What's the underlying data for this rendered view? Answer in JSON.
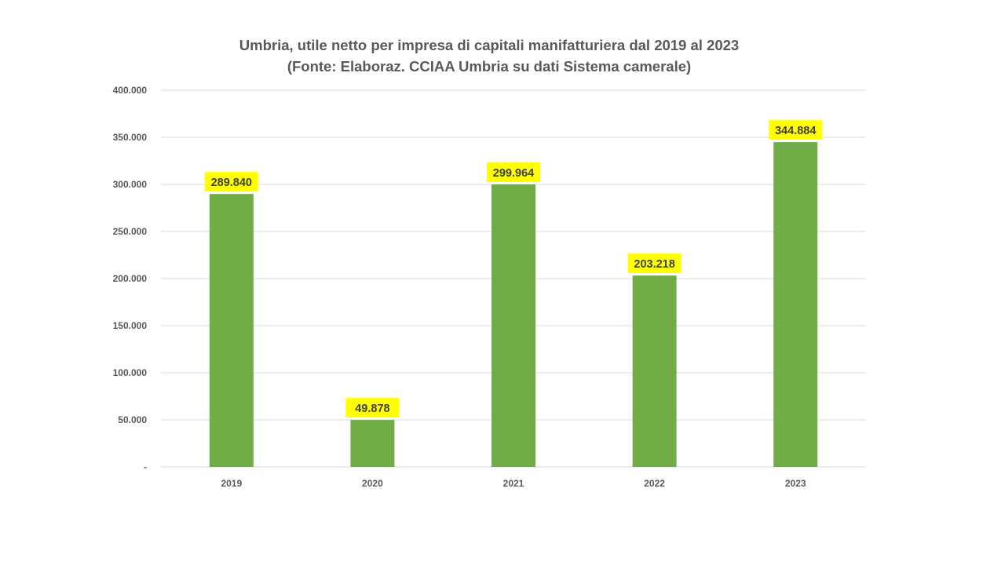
{
  "chart_data": {
    "type": "bar",
    "title": "Umbria, utile netto per impresa di capitali manifatturiera dal 2019 al 2023",
    "subtitle": "(Fonte: Elaboraz. CCIAA Umbria su dati Sistema camerale)",
    "xlabel": "",
    "ylabel": "",
    "categories": [
      "2019",
      "2020",
      "2021",
      "2022",
      "2023"
    ],
    "values": [
      289840,
      49878,
      299964,
      203218,
      344884
    ],
    "data_labels": [
      "289.840",
      "49.878",
      "299.964",
      "203.218",
      "344.884"
    ],
    "ylim": [
      0,
      400000
    ],
    "yticks": [
      0,
      50000,
      100000,
      150000,
      200000,
      250000,
      300000,
      350000,
      400000
    ],
    "ytick_labels": [
      "-",
      "50.000",
      "100.000",
      "150.000",
      "200.000",
      "250.000",
      "300.000",
      "350.000",
      "400.000"
    ],
    "grid": true,
    "legend": "none",
    "colors": {
      "bar": "#70AD47",
      "label_bg": "#FFFF00",
      "grid": "#D9D9D9"
    }
  }
}
